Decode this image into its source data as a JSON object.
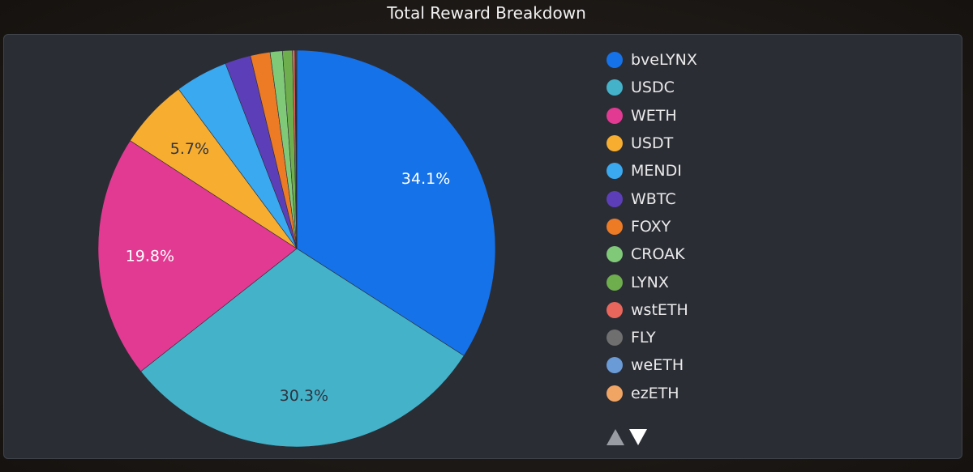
{
  "title": "Total Reward Breakdown",
  "chart_data": {
    "type": "pie",
    "title": "Total Reward Breakdown",
    "legend_position": "right",
    "slices": [
      {
        "label": "bveLYNX",
        "value": 34.1,
        "color": "#1672e8",
        "shown_label": "34.1%",
        "label_color": "#ffffff"
      },
      {
        "label": "USDC",
        "value": 30.3,
        "color": "#44b2c9",
        "shown_label": "30.3%",
        "label_color": "#2f3440"
      },
      {
        "label": "WETH",
        "value": 19.8,
        "color": "#e23a93",
        "shown_label": "19.8%",
        "label_color": "#ffffff"
      },
      {
        "label": "USDT",
        "value": 5.7,
        "color": "#f7ad30",
        "shown_label": "5.7%",
        "label_color": "#2f3440"
      },
      {
        "label": "MENDI",
        "value": 4.3,
        "color": "#3aa9f0",
        "shown_label": ""
      },
      {
        "label": "WBTC",
        "value": 2.1,
        "color": "#5c3fb8",
        "shown_label": ""
      },
      {
        "label": "FOXY",
        "value": 1.6,
        "color": "#ed7a24",
        "shown_label": ""
      },
      {
        "label": "CROAK",
        "value": 1.0,
        "color": "#80c978",
        "shown_label": ""
      },
      {
        "label": "LYNX",
        "value": 0.8,
        "color": "#6eae4c",
        "shown_label": ""
      },
      {
        "label": "wstETH",
        "value": 0.2,
        "color": "#e9665c",
        "shown_label": ""
      },
      {
        "label": "FLY",
        "value": 0.05,
        "color": "#6f6f6f",
        "shown_label": ""
      },
      {
        "label": "weETH",
        "value": 0.05,
        "color": "#6a9bd6",
        "shown_label": ""
      },
      {
        "label": "ezETH",
        "value": 0.05,
        "color": "#f1a564",
        "shown_label": ""
      }
    ]
  },
  "pager": {
    "up_icon": "triangle-up-icon",
    "down_icon": "triangle-down-icon"
  }
}
